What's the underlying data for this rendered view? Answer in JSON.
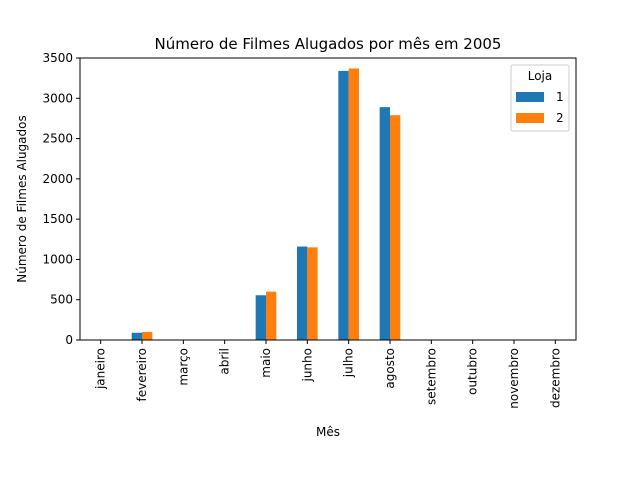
{
  "chart_data": {
    "type": "bar",
    "title": "Número de Filmes Alugados por mês em 2005",
    "xlabel": "Mês",
    "ylabel": "Número de Filmes Alugados",
    "categories": [
      "janeiro",
      "fevereiro",
      "março",
      "abril",
      "maio",
      "junho",
      "julho",
      "agosto",
      "setembro",
      "outubro",
      "novembro",
      "dezembro"
    ],
    "series": [
      {
        "name": "1",
        "color": "#1f77b4",
        "values": [
          0,
          90,
          0,
          0,
          555,
          1160,
          3340,
          2890,
          0,
          0,
          0,
          0
        ]
      },
      {
        "name": "2",
        "color": "#ff7f0e",
        "values": [
          0,
          100,
          0,
          0,
          600,
          1150,
          3370,
          2790,
          0,
          0,
          0,
          0
        ]
      }
    ],
    "ylim": [
      0,
      3500
    ],
    "yticks": [
      0,
      500,
      1000,
      1500,
      2000,
      2500,
      3000,
      3500
    ],
    "legend": {
      "title": "Loja",
      "placement": "top-right"
    },
    "grid": false
  }
}
